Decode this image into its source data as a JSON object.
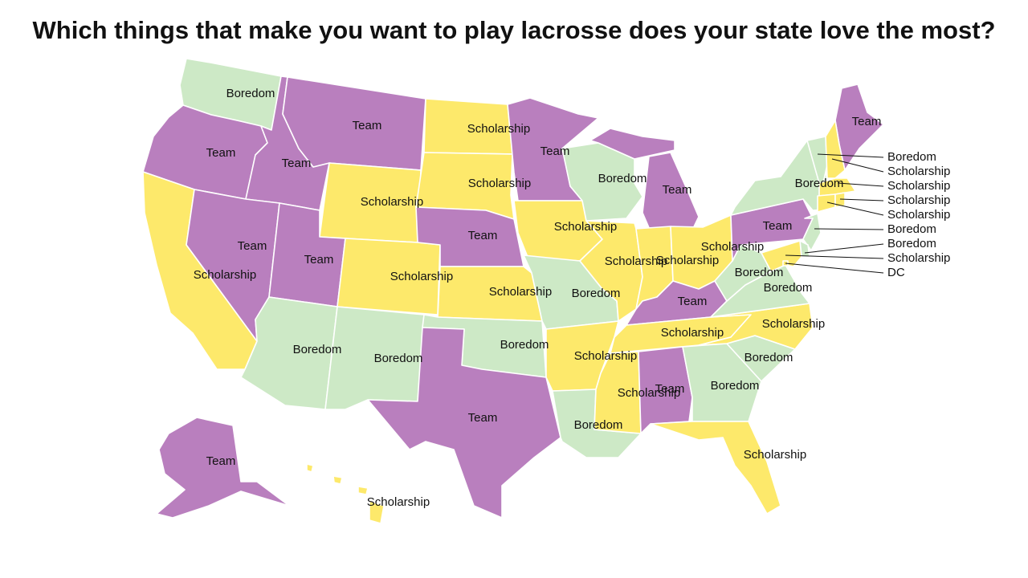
{
  "title": "Which things that make you want to play lacrosse does your state love the most?",
  "colors": {
    "Team": "#b97fbe",
    "Scholarship": "#fde96b",
    "Boredom": "#cde9c6"
  },
  "states": [
    {
      "id": "WA",
      "category": "Boredom"
    },
    {
      "id": "OR",
      "category": "Team"
    },
    {
      "id": "CA",
      "category": "Scholarship"
    },
    {
      "id": "ID",
      "category": "Team"
    },
    {
      "id": "NV",
      "category": "Team"
    },
    {
      "id": "MT",
      "category": "Team"
    },
    {
      "id": "WY",
      "category": "Scholarship"
    },
    {
      "id": "UT",
      "category": "Team"
    },
    {
      "id": "AZ",
      "category": "Boredom"
    },
    {
      "id": "CO",
      "category": "Scholarship"
    },
    {
      "id": "NM",
      "category": "Boredom"
    },
    {
      "id": "ND",
      "category": "Scholarship"
    },
    {
      "id": "SD",
      "category": "Scholarship"
    },
    {
      "id": "NE",
      "category": "Team"
    },
    {
      "id": "KS",
      "category": "Scholarship"
    },
    {
      "id": "OK",
      "category": "Boredom"
    },
    {
      "id": "TX",
      "category": "Team"
    },
    {
      "id": "MN",
      "category": "Team"
    },
    {
      "id": "IA",
      "category": "Scholarship"
    },
    {
      "id": "MO",
      "category": "Boredom"
    },
    {
      "id": "AR",
      "category": "Scholarship"
    },
    {
      "id": "LA",
      "category": "Boredom"
    },
    {
      "id": "WI",
      "category": "Boredom"
    },
    {
      "id": "MI",
      "category": "Team"
    },
    {
      "id": "IL",
      "category": "Scholarship"
    },
    {
      "id": "IN",
      "category": "Scholarship"
    },
    {
      "id": "OH",
      "category": "Scholarship"
    },
    {
      "id": "KY",
      "category": "Team"
    },
    {
      "id": "TN",
      "category": "Scholarship"
    },
    {
      "id": "MS",
      "category": "Scholarship"
    },
    {
      "id": "AL",
      "category": "Team"
    },
    {
      "id": "GA",
      "category": "Boredom"
    },
    {
      "id": "FL",
      "category": "Scholarship"
    },
    {
      "id": "SC",
      "category": "Boredom"
    },
    {
      "id": "NC",
      "category": "Scholarship"
    },
    {
      "id": "VA",
      "category": "Boredom"
    },
    {
      "id": "WV",
      "category": "Boredom"
    },
    {
      "id": "PA",
      "category": "Team"
    },
    {
      "id": "NY",
      "category": "Boredom"
    },
    {
      "id": "ME",
      "category": "Team"
    },
    {
      "id": "VT",
      "category": "Boredom"
    },
    {
      "id": "NH",
      "category": "Scholarship"
    },
    {
      "id": "MA",
      "category": "Scholarship"
    },
    {
      "id": "CT",
      "category": "Scholarship"
    },
    {
      "id": "RI",
      "category": "Scholarship"
    },
    {
      "id": "NJ",
      "category": "Boredom"
    },
    {
      "id": "DE",
      "category": "Boredom"
    },
    {
      "id": "MD",
      "category": "Scholarship"
    },
    {
      "id": "DC",
      "category": "Scholarship"
    },
    {
      "id": "AK",
      "category": "Team"
    },
    {
      "id": "HI",
      "category": "Scholarship"
    }
  ],
  "callouts": [
    {
      "id": "VT",
      "text": "Boredom"
    },
    {
      "id": "NH",
      "text": "Scholarship"
    },
    {
      "id": "MA",
      "text": "Scholarship"
    },
    {
      "id": "RI",
      "text": "Scholarship"
    },
    {
      "id": "CT",
      "text": "Scholarship"
    },
    {
      "id": "NJ",
      "text": "Boredom"
    },
    {
      "id": "DE",
      "text": "Boredom"
    },
    {
      "id": "MD",
      "text": "Scholarship"
    },
    {
      "id": "DC",
      "text": "DC"
    }
  ]
}
